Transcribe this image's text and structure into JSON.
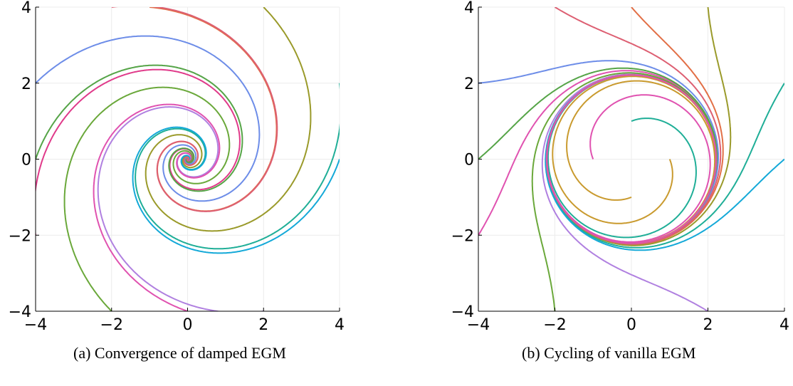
{
  "chart_data": [
    {
      "type": "line",
      "panel": "a",
      "caption": "(a) Convergence of damped EGM",
      "title": "",
      "xlabel": "",
      "ylabel": "",
      "xlim": [
        -4,
        4
      ],
      "ylim": [
        -4,
        4
      ],
      "xticks": [
        -4,
        -2,
        0,
        2,
        4
      ],
      "yticks": [
        -4,
        -2,
        0,
        2,
        4
      ],
      "grid": true,
      "legend": "none",
      "dynamics": "converging spirals (clockwise) from boundary starts",
      "series": [
        {
          "color": "#e26f46",
          "start": [
            -1,
            4
          ]
        },
        {
          "color": "#9a9a2a",
          "start": [
            2,
            4
          ]
        },
        {
          "color": "#1fae97",
          "start": [
            4,
            2
          ]
        },
        {
          "color": "#14a9d8",
          "start": [
            4,
            0
          ]
        },
        {
          "color": "#b080e0",
          "start": [
            2,
            -4
          ]
        },
        {
          "color": "#e052b0",
          "start": [
            0,
            -4
          ]
        },
        {
          "color": "#6aa83a",
          "start": [
            -2,
            -4
          ]
        },
        {
          "color": "#e03a8a",
          "start": [
            -4,
            -2
          ]
        },
        {
          "color": "#55a447",
          "start": [
            -4,
            0
          ]
        },
        {
          "color": "#6d8de8",
          "start": [
            -4,
            2
          ]
        },
        {
          "color": "#dd5f72",
          "start": [
            -2,
            4
          ]
        }
      ]
    },
    {
      "type": "line",
      "panel": "b",
      "caption": "(b) Cycling of vanilla EGM",
      "title": "",
      "xlabel": "",
      "ylabel": "",
      "xlim": [
        -4,
        4
      ],
      "ylim": [
        -4,
        4
      ],
      "xticks": [
        -4,
        -2,
        0,
        2,
        4
      ],
      "yticks": [
        -4,
        -2,
        0,
        2,
        4
      ],
      "grid": true,
      "legend": "none",
      "dynamics": "trajectories approach a limit cycle of radius about 2.2",
      "series": [
        {
          "color": "#e26f46",
          "start": [
            0,
            4
          ]
        },
        {
          "color": "#9a9a2a",
          "start": [
            2,
            4
          ]
        },
        {
          "color": "#1fae97",
          "start": [
            4,
            2
          ]
        },
        {
          "color": "#14a9d8",
          "start": [
            4,
            0
          ]
        },
        {
          "color": "#b080e0",
          "start": [
            2,
            -4
          ]
        },
        {
          "color": "#e052b0",
          "start": [
            -4,
            -2
          ]
        },
        {
          "color": "#55a447",
          "start": [
            -4,
            0
          ]
        },
        {
          "color": "#6d8de8",
          "start": [
            -4,
            2
          ]
        },
        {
          "color": "#dd5f72",
          "start": [
            -2,
            4
          ]
        },
        {
          "color": "#6aa83a",
          "start": [
            -2,
            -4
          ]
        },
        {
          "color": "#1fae97",
          "start": [
            0,
            1
          ]
        },
        {
          "color": "#c99a2e",
          "start": [
            1,
            0
          ]
        },
        {
          "color": "#c99a2e",
          "start": [
            0,
            -1
          ]
        },
        {
          "color": "#e052b0",
          "start": [
            -1,
            0
          ]
        }
      ]
    }
  ]
}
